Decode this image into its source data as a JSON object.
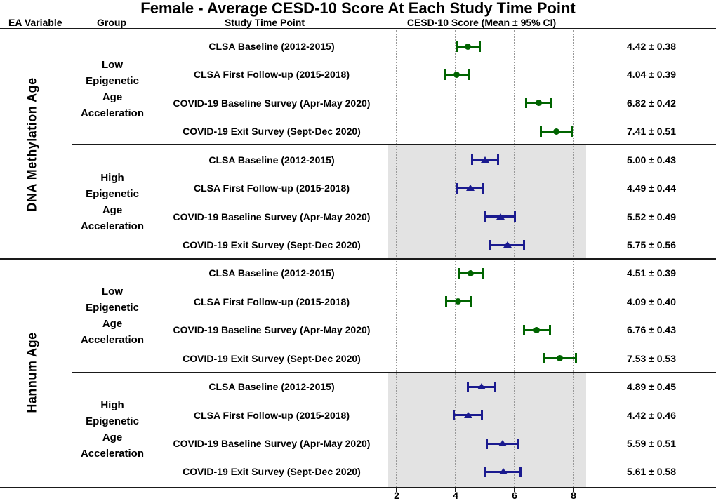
{
  "title": "Female - Average CESD-10 Score At Each Study Time Point",
  "column_headers": {
    "ea_variable": "EA Variable",
    "group": "Group",
    "time_point": "Study Time Point",
    "score": "CESD-10 Score (Mean ± 95% CI)"
  },
  "axis": {
    "tick_labels": [
      "2",
      "4",
      "6",
      "8"
    ]
  },
  "colors": {
    "low_group": "#006400",
    "high_group": "#1a1a8f",
    "shaded_band": "#e3e3e3",
    "gridline": "#999999"
  },
  "ea_sections": [
    {
      "ea_variable": "DNA Methylation Age",
      "groups": [
        {
          "name": "Low\nEpigenetic\nAge\nAcceleration",
          "marker": "circle",
          "color": "#006400",
          "shaded": false,
          "rows": [
            {
              "label": "CLSA Baseline (2012-2015)",
              "value_text": "4.42 ± 0.38",
              "mean": 4.42,
              "ci": 0.38
            },
            {
              "label": "CLSA First Follow-up (2015-2018)",
              "value_text": "4.04 ± 0.39",
              "mean": 4.04,
              "ci": 0.39
            },
            {
              "label": "COVID-19 Baseline Survey (Apr-May 2020)",
              "value_text": "6.82 ± 0.42",
              "mean": 6.82,
              "ci": 0.42
            },
            {
              "label": "COVID-19 Exit Survey (Sept-Dec 2020)",
              "value_text": "7.41 ± 0.51",
              "mean": 7.41,
              "ci": 0.51
            }
          ]
        },
        {
          "name": "High\nEpigenetic\nAge\nAcceleration",
          "marker": "triangle",
          "color": "#1a1a8f",
          "shaded": true,
          "rows": [
            {
              "label": "CLSA Baseline (2012-2015)",
              "value_text": "5.00 ± 0.43",
              "mean": 5.0,
              "ci": 0.43
            },
            {
              "label": "CLSA First Follow-up (2015-2018)",
              "value_text": "4.49 ± 0.44",
              "mean": 4.49,
              "ci": 0.44
            },
            {
              "label": "COVID-19 Baseline Survey (Apr-May 2020)",
              "value_text": "5.52 ± 0.49",
              "mean": 5.52,
              "ci": 0.49
            },
            {
              "label": "COVID-19 Exit Survey (Sept-Dec 2020)",
              "value_text": "5.75 ± 0.56",
              "mean": 5.75,
              "ci": 0.56
            }
          ]
        }
      ]
    },
    {
      "ea_variable": "Hannum Age",
      "groups": [
        {
          "name": "Low\nEpigenetic\nAge\nAcceleration",
          "marker": "circle",
          "color": "#006400",
          "shaded": false,
          "rows": [
            {
              "label": "CLSA Baseline (2012-2015)",
              "value_text": "4.51 ± 0.39",
              "mean": 4.51,
              "ci": 0.39
            },
            {
              "label": "CLSA First Follow-up (2015-2018)",
              "value_text": "4.09 ± 0.40",
              "mean": 4.09,
              "ci": 0.4
            },
            {
              "label": "COVID-19 Baseline Survey (Apr-May 2020)",
              "value_text": "6.76 ± 0.43",
              "mean": 6.76,
              "ci": 0.43
            },
            {
              "label": "COVID-19 Exit Survey (Sept-Dec 2020)",
              "value_text": "7.53 ± 0.53",
              "mean": 7.53,
              "ci": 0.53
            }
          ]
        },
        {
          "name": "High\nEpigenetic\nAge\nAcceleration",
          "marker": "triangle",
          "color": "#1a1a8f",
          "shaded": true,
          "rows": [
            {
              "label": "CLSA Baseline (2012-2015)",
              "value_text": "4.89 ± 0.45",
              "mean": 4.89,
              "ci": 0.45
            },
            {
              "label": "CLSA First Follow-up (2015-2018)",
              "value_text": "4.42 ± 0.46",
              "mean": 4.42,
              "ci": 0.46
            },
            {
              "label": "COVID-19 Baseline Survey (Apr-May 2020)",
              "value_text": "5.59 ± 0.51",
              "mean": 5.59,
              "ci": 0.51
            },
            {
              "label": "COVID-19 Exit Survey (Sept-Dec 2020)",
              "value_text": "5.61 ± 0.58",
              "mean": 5.61,
              "ci": 0.58
            }
          ]
        }
      ]
    }
  ],
  "chart_data": {
    "type": "scatter",
    "subtype": "forest-plot-with-95ci-error-bars",
    "orientation": "horizontal",
    "title": "Female - Average CESD-10 Score At Each Study Time Point",
    "xlabel": "CESD-10 Score (Mean ± 95% CI)",
    "x_ticks": [
      2,
      4,
      6,
      8
    ],
    "xlim": [
      1.5,
      9
    ],
    "grid": "dotted vertical gridlines at ticks",
    "legend_position": "none",
    "background_bands": {
      "color": "#e3e3e3",
      "applies_to": "High Epigenetic Age Acceleration row blocks"
    },
    "series": [
      {
        "name": "Low Epigenetic Age Acceleration",
        "marker": "circle",
        "color": "#006400",
        "points": [
          {
            "ea_variable": "DNA Methylation Age",
            "time_point": "CLSA Baseline (2012-2015)",
            "mean": 4.42,
            "ci95": 0.38
          },
          {
            "ea_variable": "DNA Methylation Age",
            "time_point": "CLSA First Follow-up (2015-2018)",
            "mean": 4.04,
            "ci95": 0.39
          },
          {
            "ea_variable": "DNA Methylation Age",
            "time_point": "COVID-19 Baseline Survey (Apr-May 2020)",
            "mean": 6.82,
            "ci95": 0.42
          },
          {
            "ea_variable": "DNA Methylation Age",
            "time_point": "COVID-19 Exit Survey (Sept-Dec 2020)",
            "mean": 7.41,
            "ci95": 0.51
          },
          {
            "ea_variable": "Hannum Age",
            "time_point": "CLSA Baseline (2012-2015)",
            "mean": 4.51,
            "ci95": 0.39
          },
          {
            "ea_variable": "Hannum Age",
            "time_point": "CLSA First Follow-up (2015-2018)",
            "mean": 4.09,
            "ci95": 0.4
          },
          {
            "ea_variable": "Hannum Age",
            "time_point": "COVID-19 Baseline Survey (Apr-May 2020)",
            "mean": 6.76,
            "ci95": 0.43
          },
          {
            "ea_variable": "Hannum Age",
            "time_point": "COVID-19 Exit Survey (Sept-Dec 2020)",
            "mean": 7.53,
            "ci95": 0.53
          }
        ]
      },
      {
        "name": "High Epigenetic Age Acceleration",
        "marker": "triangle",
        "color": "#1a1a8f",
        "points": [
          {
            "ea_variable": "DNA Methylation Age",
            "time_point": "CLSA Baseline (2012-2015)",
            "mean": 5.0,
            "ci95": 0.43
          },
          {
            "ea_variable": "DNA Methylation Age",
            "time_point": "CLSA First Follow-up (2015-2018)",
            "mean": 4.49,
            "ci95": 0.44
          },
          {
            "ea_variable": "DNA Methylation Age",
            "time_point": "COVID-19 Baseline Survey (Apr-May 2020)",
            "mean": 5.52,
            "ci95": 0.49
          },
          {
            "ea_variable": "DNA Methylation Age",
            "time_point": "COVID-19 Exit Survey (Sept-Dec 2020)",
            "mean": 5.75,
            "ci95": 0.56
          },
          {
            "ea_variable": "Hannum Age",
            "time_point": "CLSA Baseline (2012-2015)",
            "mean": 4.89,
            "ci95": 0.45
          },
          {
            "ea_variable": "Hannum Age",
            "time_point": "CLSA First Follow-up (2015-2018)",
            "mean": 4.42,
            "ci95": 0.46
          },
          {
            "ea_variable": "Hannum Age",
            "time_point": "COVID-19 Baseline Survey (Apr-May 2020)",
            "mean": 5.59,
            "ci95": 0.51
          },
          {
            "ea_variable": "Hannum Age",
            "time_point": "COVID-19 Exit Survey (Sept-Dec 2020)",
            "mean": 5.61,
            "ci95": 0.58
          }
        ]
      }
    ]
  }
}
